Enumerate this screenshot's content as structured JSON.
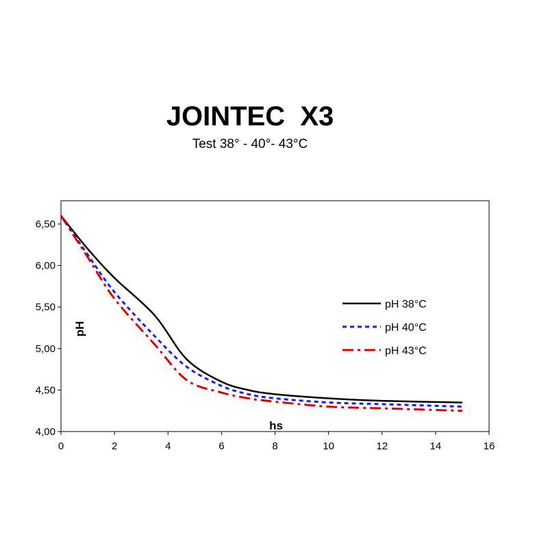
{
  "title": "JOINTEC  X3",
  "subtitle": "Test  38° - 40°- 43°C",
  "chart_data": {
    "type": "line",
    "xlabel": "hs",
    "ylabel": "pH",
    "xlim": [
      0,
      16
    ],
    "ylim": [
      4.0,
      6.6
    ],
    "x_ticks": [
      0,
      2,
      4,
      6,
      8,
      10,
      12,
      14,
      16
    ],
    "x_tick_labels": [
      "0",
      "2",
      "4",
      "6",
      "8",
      "10",
      "12",
      "14",
      "16"
    ],
    "y_ticks": [
      4.0,
      4.5,
      5.0,
      5.5,
      6.0,
      6.5
    ],
    "y_tick_labels": [
      "4,00",
      "4,50",
      "5,00",
      "5,50",
      "6,00",
      "6,50"
    ],
    "grid": false,
    "legend_position": "right",
    "series": [
      {
        "name": "pH 38°C",
        "color": "#000000",
        "dash": "solid",
        "x": [
          0,
          1,
          2,
          3.5,
          4.7,
          6,
          7,
          8,
          10,
          12,
          15
        ],
        "y": [
          6.6,
          6.2,
          5.85,
          5.4,
          4.87,
          4.6,
          4.5,
          4.45,
          4.4,
          4.37,
          4.35
        ]
      },
      {
        "name": "pH 40°C",
        "color": "#1a1aff",
        "dash": "dotted",
        "x": [
          0,
          1,
          2,
          3.5,
          4.7,
          6,
          7,
          8,
          10,
          12,
          15
        ],
        "y": [
          6.6,
          6.13,
          5.68,
          5.15,
          4.78,
          4.55,
          4.45,
          4.4,
          4.35,
          4.33,
          4.3
        ]
      },
      {
        "name": "pH 43°C",
        "color": "#e00000",
        "dash": "dashdot",
        "x": [
          0,
          1,
          2,
          3.5,
          4.7,
          6,
          7,
          8,
          10,
          12,
          15
        ],
        "y": [
          6.6,
          6.1,
          5.6,
          5.05,
          4.62,
          4.47,
          4.4,
          4.36,
          4.3,
          4.28,
          4.25
        ]
      }
    ]
  }
}
